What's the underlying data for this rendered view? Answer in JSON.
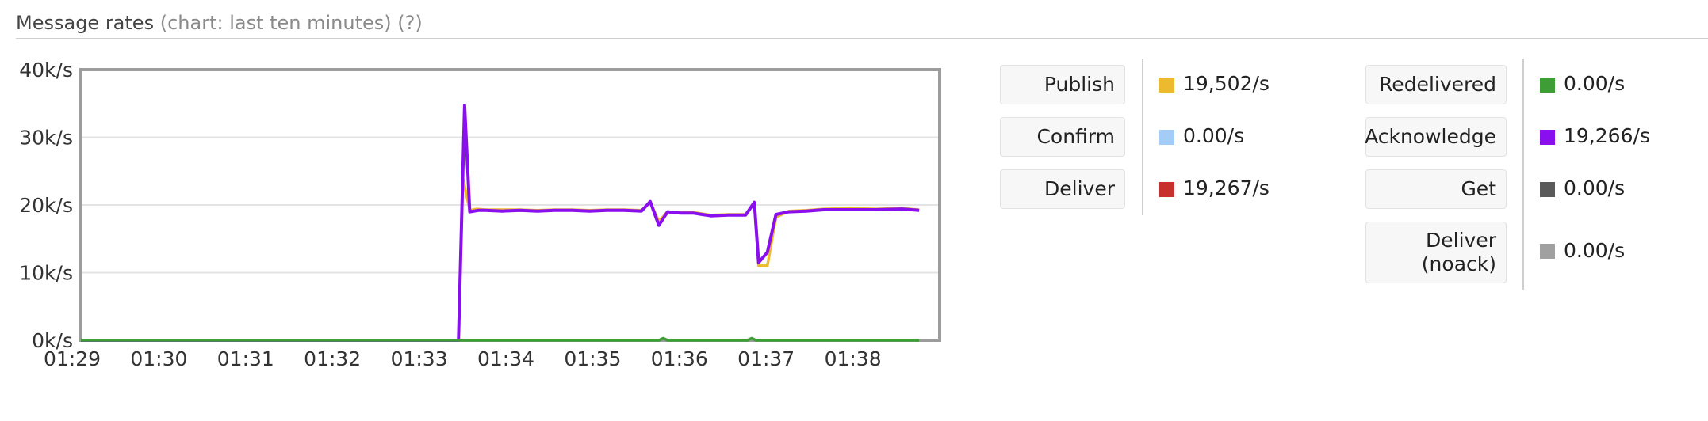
{
  "header": {
    "title": "Message rates",
    "subtitle": "(chart: last ten minutes)",
    "help": "(?)"
  },
  "chart_data": {
    "type": "line",
    "title": "",
    "xlabel": "",
    "ylabel": "",
    "x_ticks": [
      "01:29",
      "01:30",
      "01:31",
      "01:32",
      "01:33",
      "01:34",
      "01:35",
      "01:36",
      "01:37",
      "01:38"
    ],
    "y_ticks": [
      "0k/s",
      "10k/s",
      "20k/s",
      "30k/s",
      "40k/s"
    ],
    "ylim": [
      0,
      40000
    ],
    "xlim_minutes": [
      1.29,
      1.388
    ],
    "grid": true,
    "legend": "right",
    "series": [
      {
        "name": "Publish",
        "color": "#edb92e",
        "x": [
          1.29,
          1.3349,
          1.3354,
          1.3362,
          1.337,
          1.338,
          1.34,
          1.342,
          1.344,
          1.346,
          1.348,
          1.35,
          1.352,
          1.354,
          1.356,
          1.357,
          1.358,
          1.359,
          1.3605,
          1.362,
          1.364,
          1.366,
          1.368,
          1.369,
          1.3695,
          1.3705,
          1.3715,
          1.373,
          1.375,
          1.377,
          1.38,
          1.383,
          1.386,
          1.388
        ],
        "y": [
          0,
          0,
          24000,
          19200,
          19400,
          19300,
          19300,
          19300,
          19200,
          19300,
          19300,
          19200,
          19300,
          19300,
          19200,
          20400,
          17600,
          19000,
          18900,
          18900,
          18500,
          18600,
          18600,
          20200,
          11000,
          11000,
          18200,
          19100,
          19200,
          19400,
          19500,
          19400,
          19500,
          19300
        ]
      },
      {
        "name": "Acknowledge",
        "color": "#8a0fef",
        "x": [
          1.29,
          1.3349,
          1.3356,
          1.3362,
          1.3372,
          1.338,
          1.34,
          1.342,
          1.344,
          1.346,
          1.348,
          1.35,
          1.352,
          1.354,
          1.356,
          1.357,
          1.358,
          1.359,
          1.3605,
          1.362,
          1.364,
          1.366,
          1.368,
          1.369,
          1.3695,
          1.3705,
          1.3715,
          1.373,
          1.375,
          1.377,
          1.38,
          1.383,
          1.386,
          1.388
        ],
        "y": [
          0,
          0,
          34700,
          19000,
          19200,
          19200,
          19100,
          19200,
          19100,
          19200,
          19200,
          19100,
          19200,
          19200,
          19100,
          20500,
          17000,
          19000,
          18800,
          18800,
          18400,
          18500,
          18500,
          20400,
          11500,
          13000,
          18600,
          19000,
          19100,
          19300,
          19300,
          19300,
          19400,
          19200
        ]
      },
      {
        "name": "Redelivered",
        "color": "#3d9e36",
        "x": [
          1.29,
          1.358,
          1.3585,
          1.359,
          1.3682,
          1.3687,
          1.3692,
          1.388
        ],
        "y": [
          0,
          0,
          300,
          0,
          0,
          300,
          0,
          0
        ]
      }
    ]
  },
  "legend_left": [
    {
      "label": "Publish",
      "value": "19,502/s",
      "color": "#edb92e"
    },
    {
      "label": "Confirm",
      "value": "0.00/s",
      "color": "#a3cdf6"
    },
    {
      "label": "Deliver",
      "value": "19,267/s",
      "color": "#c8302f"
    }
  ],
  "legend_right": [
    {
      "label": "Redelivered",
      "value": "0.00/s",
      "color": "#3d9e36"
    },
    {
      "label": "Acknowledge",
      "value": "19,266/s",
      "color": "#8a0fef"
    },
    {
      "label": "Get",
      "value": "0.00/s",
      "color": "#5a5a5a"
    },
    {
      "label": "Deliver\n(noack)",
      "value": "0.00/s",
      "color": "#a0a0a0"
    }
  ]
}
